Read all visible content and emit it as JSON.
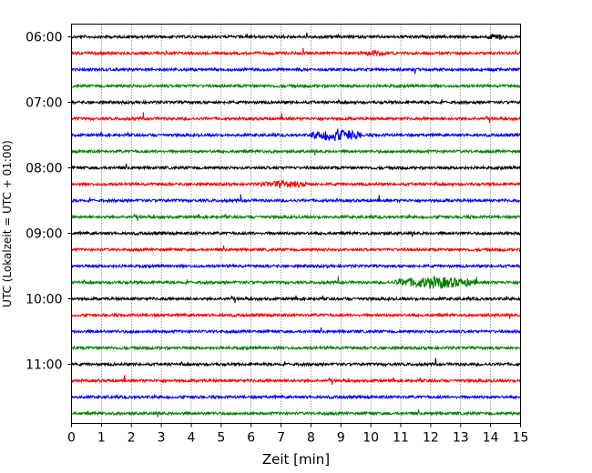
{
  "chart_data": {
    "type": "line",
    "subtype": "helicorder",
    "xlabel": "Zeit  [min]",
    "ylabel": "UTC (Lokalzeit = UTC + 01:00)",
    "xlim": [
      0,
      15
    ],
    "x_ticks": [
      "0",
      "1",
      "2",
      "3",
      "4",
      "5",
      "6",
      "7",
      "8",
      "9",
      "10",
      "11",
      "12",
      "13",
      "14",
      "15"
    ],
    "y_ticks": [
      "06:00",
      "07:00",
      "08:00",
      "09:00",
      "10:00",
      "11:00"
    ],
    "x_grid": "dotted vertical lines at each minute",
    "traces_per_hour": 4,
    "trace_minutes": 15,
    "first_trace_time": "06:00",
    "trace_count": 24,
    "series_colors": [
      "#000000",
      "#ff0000",
      "#0000ff",
      "#008000"
    ],
    "notable_events": [
      {
        "trace_time": "07:30",
        "x_start": 8.0,
        "x_end": 9.7,
        "relative_amplitude": "high"
      },
      {
        "trace_time": "08:15",
        "x_start": 6.3,
        "x_end": 8.0,
        "relative_amplitude": "medium"
      },
      {
        "trace_time": "09:45",
        "x_start": 10.8,
        "x_end": 13.5,
        "relative_amplitude": "high"
      },
      {
        "trace_time": "06:15",
        "x_start": 9.8,
        "x_end": 10.5,
        "relative_amplitude": "medium"
      },
      {
        "trace_time": "06:00",
        "x_start": 13.9,
        "x_end": 14.5,
        "relative_amplitude": "medium"
      }
    ]
  }
}
